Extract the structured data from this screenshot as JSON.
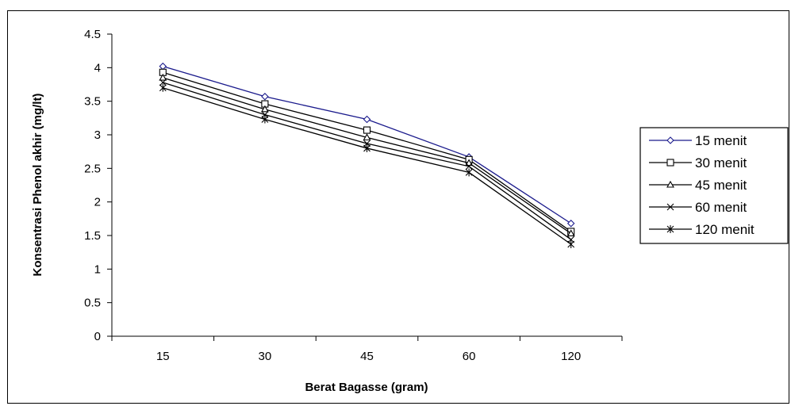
{
  "chart_data": {
    "type": "line",
    "title": "",
    "xlabel": "Berat Bagasse (gram)",
    "ylabel": "Konsentrasi Phenol akhir (mg/lt)",
    "categories": [
      "15",
      "30",
      "45",
      "60",
      "120"
    ],
    "ylim": [
      0,
      4.5
    ],
    "yticks": [
      "0",
      "0.5",
      "1",
      "1.5",
      "2",
      "2.5",
      "3",
      "3.5",
      "4",
      "4.5"
    ],
    "grid": false,
    "legend_position": "right",
    "series": [
      {
        "name": "15 menit",
        "marker": "diamond",
        "color": "#1a1a8c",
        "values": [
          4.02,
          3.57,
          3.23,
          2.67,
          1.68
        ]
      },
      {
        "name": "30 menit",
        "marker": "square",
        "color": "#000000",
        "values": [
          3.93,
          3.46,
          3.07,
          2.63,
          1.56
        ]
      },
      {
        "name": "45 menit",
        "marker": "triangle",
        "color": "#000000",
        "values": [
          3.85,
          3.38,
          2.96,
          2.58,
          1.53
        ]
      },
      {
        "name": "60 menit",
        "marker": "x",
        "color": "#000000",
        "values": [
          3.78,
          3.3,
          2.87,
          2.53,
          1.44
        ]
      },
      {
        "name": "120 menit",
        "marker": "star",
        "color": "#000000",
        "values": [
          3.7,
          3.23,
          2.8,
          2.44,
          1.37
        ]
      }
    ]
  }
}
